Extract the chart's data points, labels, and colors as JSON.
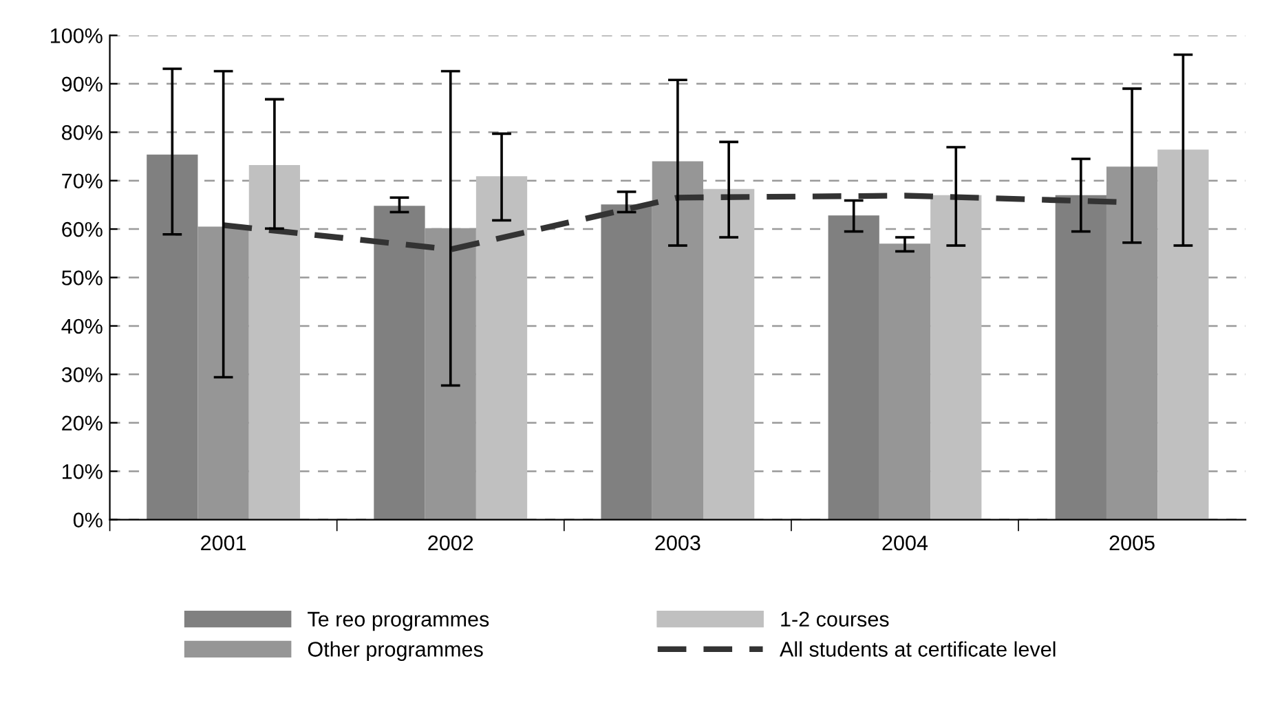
{
  "chart_data": {
    "type": "bar",
    "categories": [
      "2001",
      "2002",
      "2003",
      "2004",
      "2005"
    ],
    "series": [
      {
        "name": "Te reo programmes",
        "color": "#808080",
        "values": [
          75.4,
          64.8,
          65.1,
          62.8,
          67.0
        ],
        "errors": [
          [
            58.9,
            93.1
          ],
          [
            63.5,
            66.5
          ],
          [
            63.5,
            67.7
          ],
          [
            59.5,
            65.9
          ],
          [
            59.5,
            74.5
          ]
        ]
      },
      {
        "name": "Other programmes",
        "color": "#969696",
        "values": [
          60.5,
          60.2,
          74.0,
          57.0,
          72.9
        ],
        "errors": [
          [
            29.4,
            92.6
          ],
          [
            27.7,
            92.6
          ],
          [
            56.6,
            90.8
          ],
          [
            55.4,
            58.3
          ],
          [
            57.2,
            89.0
          ]
        ]
      },
      {
        "name": "1-2 courses",
        "color": "#c0c0c0",
        "values": [
          73.2,
          70.9,
          68.3,
          67.0,
          76.4
        ],
        "errors": [
          [
            60.1,
            86.8
          ],
          [
            61.8,
            79.7
          ],
          [
            58.3,
            78.0
          ],
          [
            56.6,
            76.9
          ],
          [
            56.6,
            96.0
          ]
        ]
      },
      {
        "name": "All students at certificate level",
        "type": "line",
        "color": "#333333",
        "line_style": "dashed",
        "marker": "none",
        "values": [
          60.8,
          55.8,
          66.5,
          66.9,
          65.5
        ]
      }
    ],
    "ylim": [
      0,
      100
    ],
    "yticks": [
      {
        "value": 0,
        "label": "0%"
      },
      {
        "value": 10,
        "label": "10%"
      },
      {
        "value": 20,
        "label": "20%"
      },
      {
        "value": 30,
        "label": "30%"
      },
      {
        "value": 40,
        "label": "40%"
      },
      {
        "value": 50,
        "label": "50%"
      },
      {
        "value": 60,
        "label": "60%"
      },
      {
        "value": 70,
        "label": "70%"
      },
      {
        "value": 80,
        "label": "80%"
      },
      {
        "value": 90,
        "label": "90%"
      },
      {
        "value": 100,
        "label": "100%"
      }
    ],
    "grid": "y",
    "legend": "bottom"
  }
}
